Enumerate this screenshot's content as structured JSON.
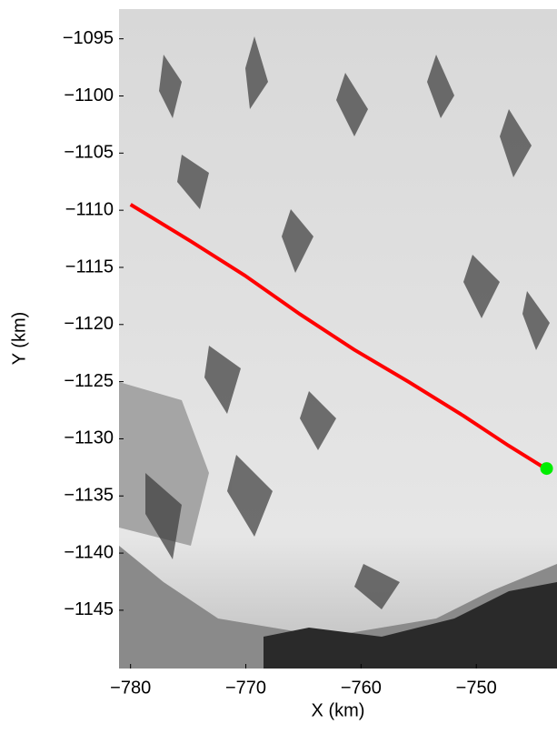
{
  "chart_data": {
    "type": "line",
    "x_label": "X (km)",
    "y_label": "Y (km)",
    "xlim": [
      -781,
      -743
    ],
    "ylim": [
      -1150.1,
      -1092.4
    ],
    "xticks": [
      {
        "value": -780,
        "label": "−780"
      },
      {
        "value": -770,
        "label": "−770"
      },
      {
        "value": -760,
        "label": "−760"
      },
      {
        "value": -750,
        "label": "−750"
      }
    ],
    "yticks": [
      {
        "value": -1145,
        "label": "−1145"
      },
      {
        "value": -1140,
        "label": "−1140"
      },
      {
        "value": -1135,
        "label": "−1135"
      },
      {
        "value": -1130,
        "label": "−1130"
      },
      {
        "value": -1125,
        "label": "−1125"
      },
      {
        "value": -1120,
        "label": "−1120"
      },
      {
        "value": -1115,
        "label": "−1115"
      },
      {
        "value": -1110,
        "label": "−1110"
      },
      {
        "value": -1105,
        "label": "−1105"
      },
      {
        "value": -1100,
        "label": "−1100"
      },
      {
        "value": -1095,
        "label": "−1095"
      }
    ],
    "series": [
      {
        "color": "#ff0000",
        "x": [
          -780,
          -774.8,
          -770.1,
          -765.3,
          -760.6,
          -755.9,
          -751.1,
          -747.2,
          -744
        ],
        "values": [
          -1109.5,
          -1112.7,
          -1115.7,
          -1119.1,
          -1122.2,
          -1125,
          -1128,
          -1130.6,
          -1132.6
        ]
      }
    ],
    "points": [
      {
        "color": "#00ee00",
        "x": -743.9,
        "y": -1132.6
      }
    ]
  }
}
